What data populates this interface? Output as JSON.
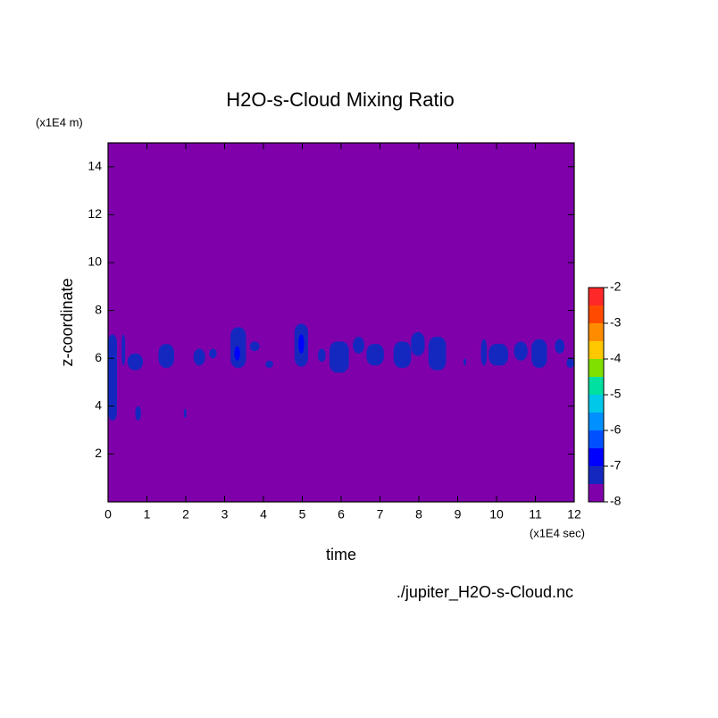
{
  "chart_data": {
    "type": "contour",
    "title": "H2O-s-Cloud Mixing Ratio",
    "xlabel": "time",
    "ylabel": "z-coordinate",
    "x_unit": "(x1E4 sec)",
    "y_unit": "(x1E4 m)",
    "source": "./jupiter_H2O-s-Cloud.nc",
    "xlim": [
      0,
      12
    ],
    "xticks": [
      0,
      1,
      2,
      3,
      4,
      5,
      6,
      7,
      8,
      9,
      10,
      11,
      12
    ],
    "ylim": [
      0,
      15
    ],
    "yticks": [
      2,
      4,
      6,
      8,
      10,
      12,
      14
    ],
    "levels": [
      -8,
      -7.5,
      -7,
      -6.5,
      -6,
      -5.5,
      -5,
      -4.5,
      -4,
      -3.5,
      -3,
      -2.5,
      -2
    ],
    "colors": [
      "#7f00aa",
      "#1428c0",
      "#0000ff",
      "#0050ff",
      "#0090ff",
      "#00c8e8",
      "#00e0a0",
      "#80e000",
      "#ffc800",
      "#ff8c00",
      "#ff4a00",
      "#ff2828",
      "#ffaaaa"
    ],
    "colorbar_ticks": [
      -2,
      -3,
      -4,
      -5,
      -6,
      -7,
      -8
    ],
    "regions": [
      {
        "level": -7.5,
        "x": [
          0.0,
          0.23
        ],
        "z": [
          3.4,
          7.0
        ]
      },
      {
        "level": -7.5,
        "x": [
          0.35,
          0.44
        ],
        "z": [
          5.7,
          7.0
        ]
      },
      {
        "level": -7.5,
        "x": [
          0.5,
          0.9
        ],
        "z": [
          5.5,
          6.2
        ]
      },
      {
        "level": -7.5,
        "x": [
          0.7,
          0.85
        ],
        "z": [
          3.4,
          4.0
        ]
      },
      {
        "level": -7.5,
        "x": [
          1.95,
          2.02
        ],
        "z": [
          3.5,
          3.9
        ]
      },
      {
        "level": -7.5,
        "x": [
          1.3,
          1.7
        ],
        "z": [
          5.6,
          6.6
        ]
      },
      {
        "level": -7.5,
        "x": [
          2.2,
          2.5
        ],
        "z": [
          5.7,
          6.4
        ]
      },
      {
        "level": -7.5,
        "x": [
          2.6,
          2.8
        ],
        "z": [
          6.0,
          6.4
        ]
      },
      {
        "level": -7.5,
        "x": [
          3.15,
          3.55
        ],
        "z": [
          5.6,
          7.3
        ]
      },
      {
        "level": -7,
        "x": [
          3.25,
          3.4
        ],
        "z": [
          5.9,
          6.5
        ]
      },
      {
        "level": -7.5,
        "x": [
          3.65,
          3.9
        ],
        "z": [
          6.3,
          6.7
        ]
      },
      {
        "level": -7.5,
        "x": [
          4.05,
          4.25
        ],
        "z": [
          5.6,
          5.9
        ]
      },
      {
        "level": -7.5,
        "x": [
          4.8,
          5.15
        ],
        "z": [
          5.65,
          7.45
        ]
      },
      {
        "level": -7,
        "x": [
          4.9,
          5.05
        ],
        "z": [
          6.2,
          7.0
        ]
      },
      {
        "level": -7.5,
        "x": [
          5.4,
          5.6
        ],
        "z": [
          5.85,
          6.4
        ]
      },
      {
        "level": -7.5,
        "x": [
          5.7,
          6.2
        ],
        "z": [
          5.4,
          6.7
        ]
      },
      {
        "level": -7.5,
        "x": [
          6.3,
          6.6
        ],
        "z": [
          6.2,
          6.9
        ]
      },
      {
        "level": -7.5,
        "x": [
          6.65,
          7.1
        ],
        "z": [
          5.7,
          6.6
        ]
      },
      {
        "level": -7.5,
        "x": [
          7.35,
          7.8
        ],
        "z": [
          5.6,
          6.7
        ]
      },
      {
        "level": -7.5,
        "x": [
          7.8,
          8.15
        ],
        "z": [
          6.1,
          7.1
        ]
      },
      {
        "level": -7.5,
        "x": [
          8.25,
          8.7
        ],
        "z": [
          5.5,
          6.9
        ]
      },
      {
        "level": -7.5,
        "x": [
          9.15,
          9.22
        ],
        "z": [
          5.7,
          6.0
        ]
      },
      {
        "level": -7.5,
        "x": [
          9.6,
          9.75
        ],
        "z": [
          5.7,
          6.8
        ]
      },
      {
        "level": -7.5,
        "x": [
          9.8,
          10.3
        ],
        "z": [
          5.7,
          6.6
        ]
      },
      {
        "level": -7.5,
        "x": [
          10.45,
          10.8
        ],
        "z": [
          5.9,
          6.7
        ]
      },
      {
        "level": -7.5,
        "x": [
          10.9,
          11.3
        ],
        "z": [
          5.6,
          6.8
        ]
      },
      {
        "level": -7.5,
        "x": [
          11.5,
          11.75
        ],
        "z": [
          6.2,
          6.8
        ]
      },
      {
        "level": -7.5,
        "x": [
          11.8,
          12.0
        ],
        "z": [
          5.6,
          6.0
        ]
      }
    ]
  }
}
